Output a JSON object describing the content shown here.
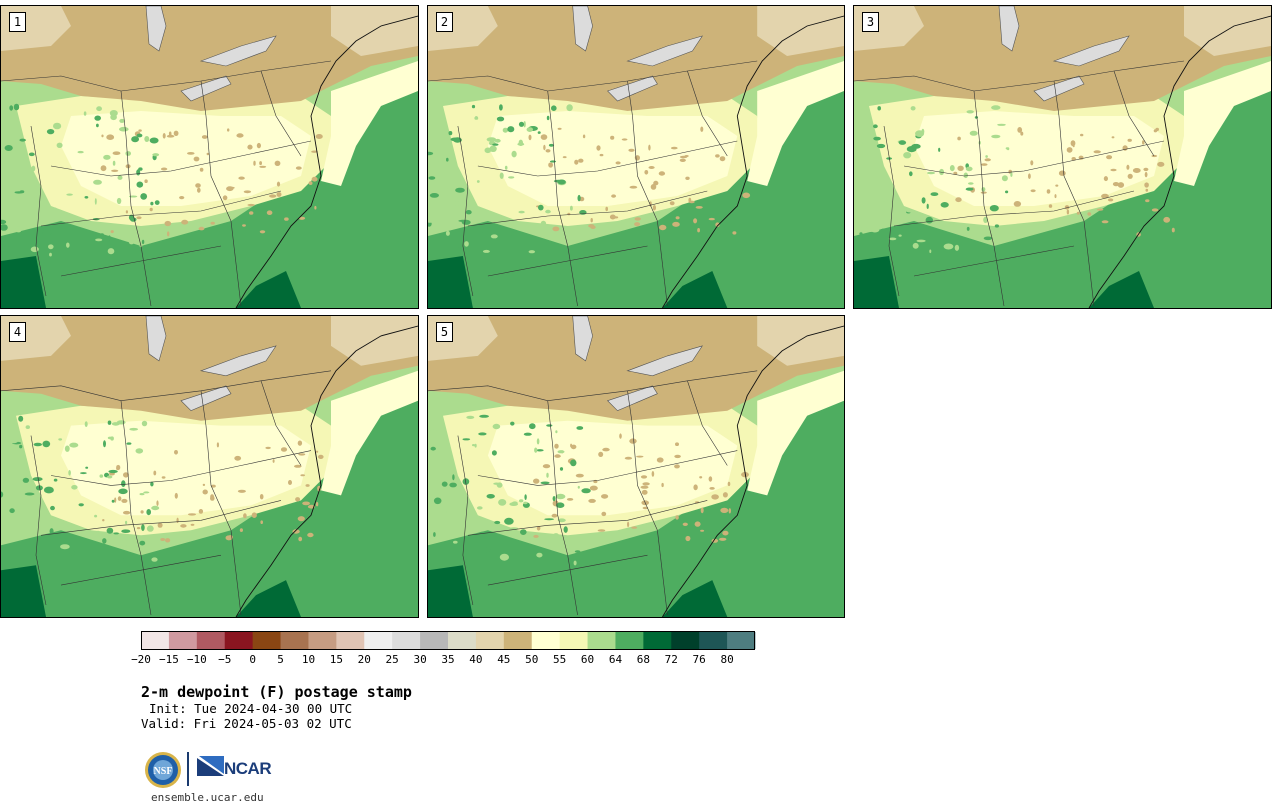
{
  "panels": [
    {
      "label": "1"
    },
    {
      "label": "2"
    },
    {
      "label": "3"
    },
    {
      "label": "4"
    },
    {
      "label": "5"
    }
  ],
  "colorbar": {
    "tick_labels": [
      "−20",
      "−15",
      "−10",
      "−5",
      "0",
      "5",
      "10",
      "15",
      "20",
      "25",
      "30",
      "35",
      "40",
      "45",
      "50",
      "55",
      "60",
      "64",
      "68",
      "72",
      "76",
      "80"
    ],
    "colors": [
      "#f2e6e6",
      "#d09aa0",
      "#b05a62",
      "#8a1520",
      "#8a4613",
      "#a87350",
      "#c69c82",
      "#e0c4b4",
      "#efefef",
      "#dcdcdc",
      "#b8b8b8",
      "#dcdcc8",
      "#e3d4ad",
      "#cdb379",
      "#ffffd2",
      "#f5f7b5",
      "#abdc8e",
      "#4ead60",
      "#006a36",
      "#00402b",
      "#1e5656",
      "#4e7d80"
    ]
  },
  "map_colors": {
    "dry": "#e3d4ad",
    "tan": "#cdb379",
    "lightyellow": "#ffffd2",
    "yellow": "#f5f7b5",
    "lightgreen": "#abdc8e",
    "green": "#4ead60",
    "darkgreen": "#006a36",
    "water": "#dcdcdc"
  },
  "title": "2-m dewpoint (F) postage stamp",
  "init": "Init: Tue 2024-04-30 00 UTC",
  "valid": "Valid: Fri 2024-05-03 02 UTC",
  "logos": {
    "nsf": "NSF",
    "ncar": "NCAR"
  },
  "url": "ensemble.ucar.edu"
}
